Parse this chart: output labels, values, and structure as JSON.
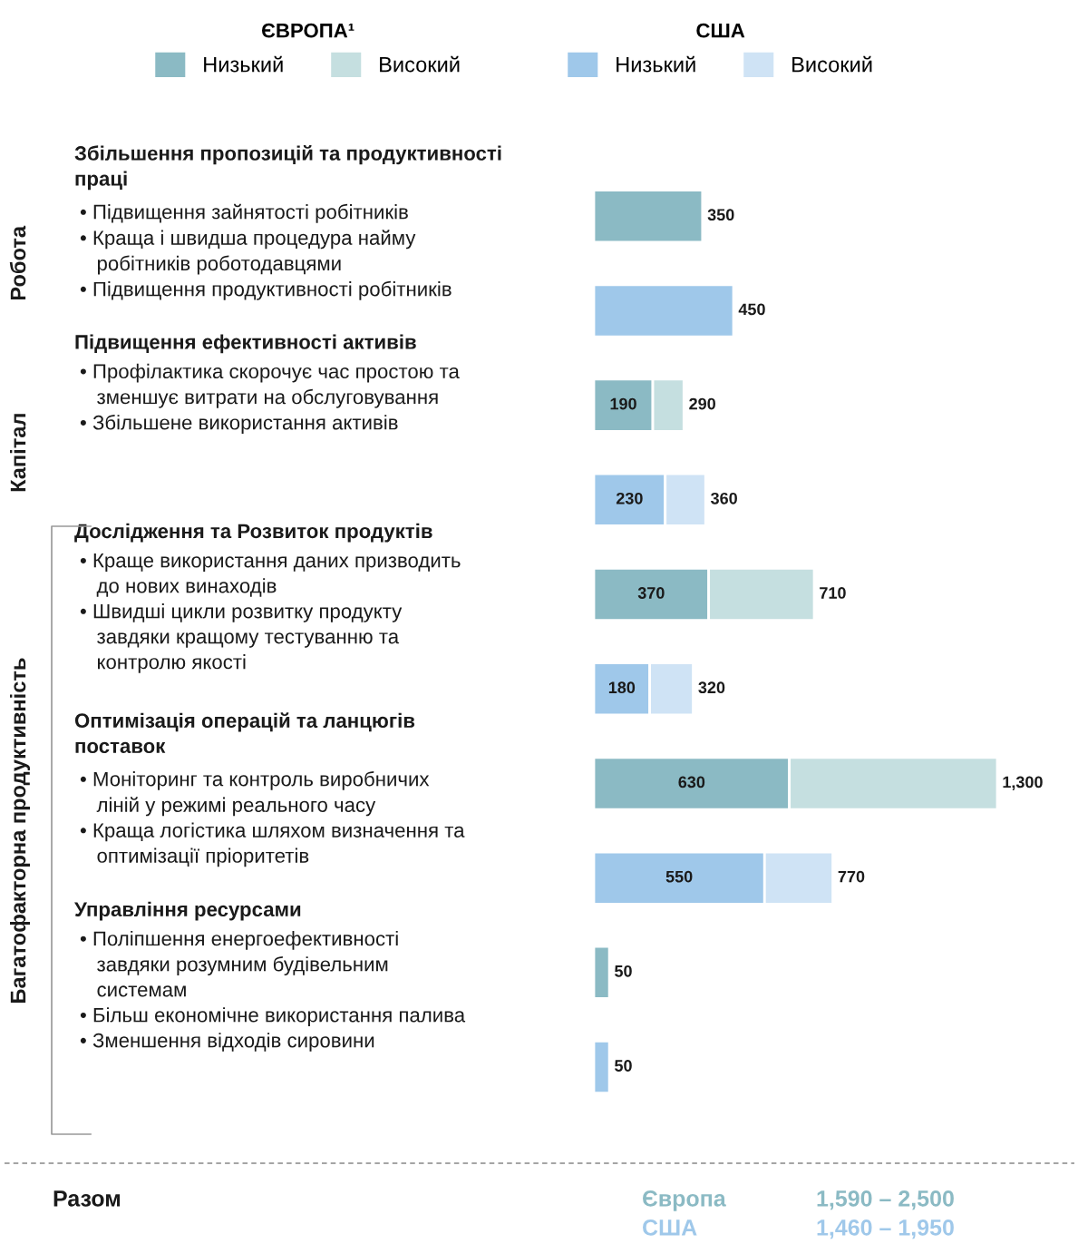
{
  "chart_data": {
    "type": "bar",
    "orientation": "horizontal",
    "stacked": true,
    "legend": "top",
    "categories": [
      null,
      null,
      null,
      null,
      null,
      null,
      null,
      null,
      null,
      null
    ],
    "series": [
      {
        "name": "Низький",
        "color": "#8bbac4",
        "values": [
          350,
          null,
          190,
          null,
          370,
          null,
          630,
          null,
          50,
          null
        ],
        "value_labels": [
          null,
          null,
          "190",
          null,
          "370",
          null,
          "630",
          null,
          null,
          null
        ]
      },
      {
        "name": "Високий",
        "color": "#c5dfe0",
        "values": [
          null,
          null,
          100,
          null,
          340,
          null,
          670,
          null,
          null,
          null
        ]
      },
      {
        "name": "Низький",
        "color": "#9fc8ea",
        "values": [
          null,
          450,
          null,
          230,
          null,
          180,
          null,
          550,
          null,
          50
        ],
        "value_labels": [
          null,
          null,
          null,
          "230",
          null,
          "180",
          null,
          "550",
          null,
          null
        ]
      },
      {
        "name": "Високий",
        "color": "#cfe3f5",
        "values": [
          null,
          null,
          null,
          130,
          null,
          140,
          null,
          220,
          null,
          null
        ]
      }
    ],
    "totals": [
      "350",
      "450",
      "290",
      "360",
      "710",
      "320",
      "1,300",
      "770",
      "50",
      "50"
    ],
    "annotations": [
      "ЄВРОПА¹",
      "США",
      "Робота",
      "Капітал",
      "Багатофакторна продуктивність",
      "Збільшення пропозицій та продуктивності\nпраці",
      "Підвищення ефективності активів",
      "Дослідження та Розвиток продуктів",
      "Оптимізація операцій та ланцюгів\nпоставок",
      "Управління ресурсами",
      "• Підвищення зайнятості робітників\n• Краща і швидша процедура найму\n   робітників роботодавцями\n• Підвищення продуктивності робітників",
      "• Профілактика скорочує час простою та\n   зменшує витрати на обслуговування\n• Збільшене використання активів",
      "• Краще використання даних призводить\n   до нових винаходів\n• Швидші цикли розвитку продукту\n   завдяки кращому тестуванню та\n   контролю якості",
      "• Моніторинг та контроль виробничих\n   ліній у режимі реального часу\n• Краща логістика шляхом визначення та\n   оптимізації пріоритетів",
      "• Поліпшення енергоефективності\n   завдяки розумним будівельним\n   системам\n• Більш економічне використання палива\n• Зменшення відходів сировини",
      "Разом",
      "Європа",
      "1,590 – 2,500",
      "США",
      "1,460 – 1,950"
    ]
  }
}
